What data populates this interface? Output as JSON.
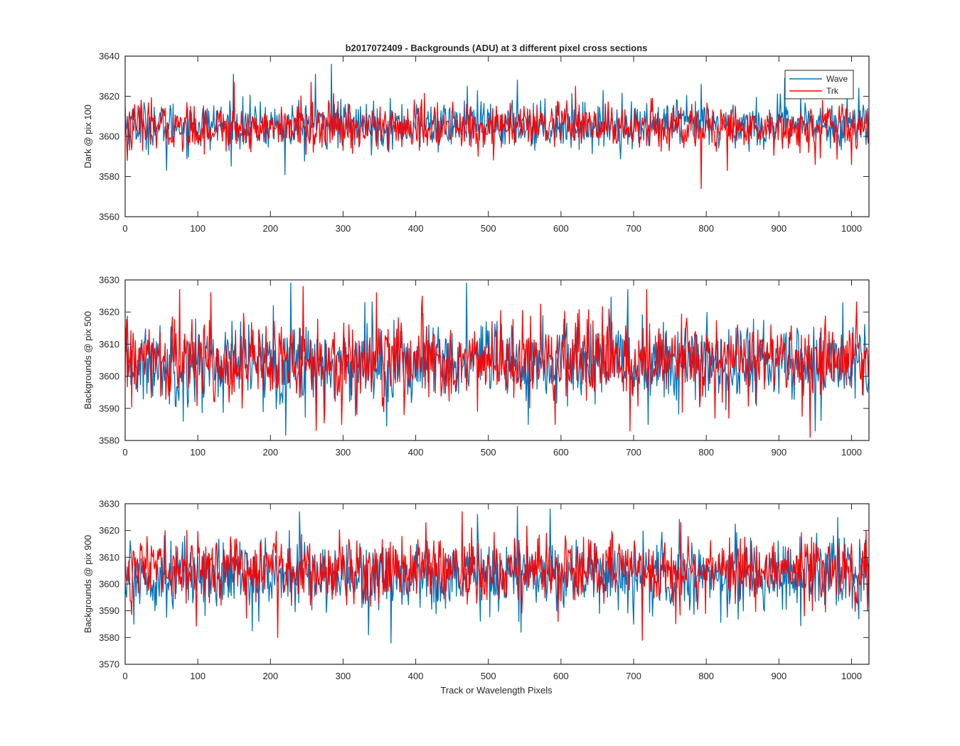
{
  "figure": {
    "title": "b2017072409 - Backgrounds (ADU) at 3 different pixel cross sections",
    "xlabel": "Track or Wavelength Pixels"
  },
  "legend": {
    "entries": [
      "Wave",
      "Trk"
    ],
    "placement": "top-right (panel 1)"
  },
  "colors": {
    "Wave": "#0072BD",
    "Trk": "#FF0000",
    "axes": "#262626",
    "background": "#FFFFFF"
  },
  "chart_data": [
    {
      "type": "line",
      "ylabel": "Dark @ pix 100",
      "xlim": [
        0,
        1024
      ],
      "ylim": [
        3560,
        3640
      ],
      "xticks": [
        0,
        100,
        200,
        300,
        400,
        500,
        600,
        700,
        800,
        900,
        1000
      ],
      "yticks": [
        3560,
        3580,
        3600,
        3620,
        3640
      ],
      "grid": false,
      "series": [
        {
          "name": "Wave",
          "color": "#0072BD",
          "mean": 3605.5,
          "spread": 5.8,
          "x": [
            0,
            57,
            149,
            220,
            262,
            284,
            471,
            540,
            793,
            908,
            994,
            1010,
            1024
          ],
          "y": [
            3612,
            3583,
            3631,
            3581,
            3631,
            3636,
            3625,
            3628,
            3626,
            3629,
            3620,
            3624,
            3601
          ]
        },
        {
          "name": "Trk",
          "color": "#FF0000",
          "mean": 3604.5,
          "spread": 5.8,
          "x": [
            0,
            3,
            150,
            256,
            620,
            726,
            780,
            793,
            829,
            950,
            1000,
            1020,
            1024
          ],
          "y": [
            3615,
            3588,
            3627,
            3627,
            3625,
            3619,
            3616,
            3574,
            3583,
            3586,
            3586,
            3613,
            3612
          ]
        }
      ]
    },
    {
      "type": "line",
      "ylabel": "Backgrounds @ pix 500",
      "xlim": [
        0,
        1024
      ],
      "ylim": [
        3580,
        3630
      ],
      "xticks": [
        0,
        100,
        200,
        300,
        400,
        500,
        600,
        700,
        800,
        900,
        1000
      ],
      "yticks": [
        3580,
        3590,
        3600,
        3610,
        3620,
        3630
      ],
      "grid": false,
      "series": [
        {
          "name": "Wave",
          "color": "#0072BD",
          "mean": 3604,
          "spread": 6.3,
          "x": [
            0,
            80,
            204,
            228,
            330,
            470,
            555,
            692,
            720,
            950,
            1024
          ],
          "y": [
            3600,
            3586,
            3622,
            3629,
            3623,
            3629,
            3585,
            3627,
            3585,
            3583,
            3600
          ]
        },
        {
          "name": "Trk",
          "color": "#FF0000",
          "mean": 3604.5,
          "spread": 6.3,
          "x": [
            0,
            75,
            118,
            245,
            298,
            346,
            592,
            695,
            718,
            943,
            1024
          ],
          "y": [
            3598,
            3627,
            3626,
            3628,
            3585,
            3626,
            3585,
            3583,
            3627,
            3581,
            3607
          ]
        }
      ]
    },
    {
      "type": "line",
      "ylabel": "Backgrounds @ pix 900",
      "xlim": [
        0,
        1024
      ],
      "ylim": [
        3570,
        3630
      ],
      "xticks": [
        0,
        100,
        200,
        300,
        400,
        500,
        600,
        700,
        800,
        900,
        1000
      ],
      "yticks": [
        3570,
        3580,
        3590,
        3600,
        3610,
        3620,
        3630
      ],
      "grid": false,
      "series": [
        {
          "name": "Wave",
          "color": "#0072BD",
          "mean": 3603.5,
          "spread": 6.5,
          "x": [
            0,
            12,
            240,
            335,
            366,
            540,
            545,
            585,
            700,
            1024
          ],
          "y": [
            3600,
            3585,
            3627,
            3581,
            3578,
            3629,
            3582,
            3628,
            3585,
            3592
          ]
        },
        {
          "name": "Trk",
          "color": "#FF0000",
          "mean": 3605.5,
          "spread": 6.2,
          "x": [
            0,
            210,
            464,
            596,
            712,
            765,
            1020,
            1024
          ],
          "y": [
            3610,
            3580,
            3627,
            3586,
            3579,
            3623,
            3620,
            3605
          ]
        }
      ]
    }
  ]
}
